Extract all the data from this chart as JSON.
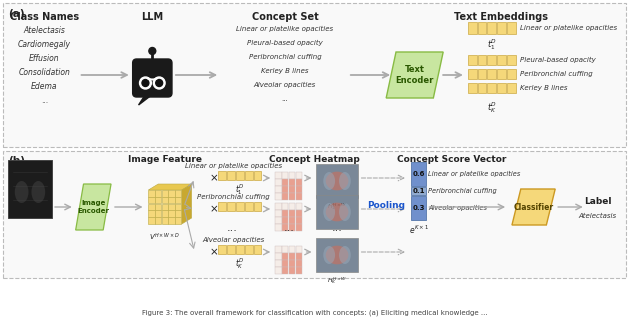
{
  "bg_color": "#ffffff",
  "green_color": "#c8e6a0",
  "yellow_color": "#f5d87a",
  "yellow_dark": "#e0c060",
  "yellow_darker": "#b89830",
  "blue_color": "#8aaacc",
  "blue_mid": "#6688bb",
  "gray_arrow": "#aaaaaa",
  "text_color": "#222222",
  "text_dark": "#111111",
  "panel_a": {
    "class_names_title": "Class Names",
    "llm_title": "LLM",
    "concept_set_title": "Concept Set",
    "text_encoder_label": "Text\nEncoder",
    "text_embeddings_title": "Text Embeddings",
    "class_names": [
      "Atelectasis",
      "Cardiomegaly",
      "Effusion",
      "Consolidation",
      "Edema",
      "..."
    ],
    "concept_set": [
      "Linear or platelike opacities",
      "Pleural-based opacity",
      "Peribronchial cuffing",
      "Kerley B lines",
      "Alveolar opacities",
      "..."
    ],
    "embedding_rows": [
      {
        "label": "Linear or platelike opacities",
        "cells": 5
      },
      {
        "label": "Pleural-based opacity",
        "cells": 5
      },
      {
        "label": "Peribronchial cuffing",
        "cells": 5
      },
      {
        "label": "Kerley B lines",
        "cells": 5
      }
    ],
    "t1_label": "$t_1^D$",
    "tk_label": "$t_K^D$"
  },
  "panel_b": {
    "image_encoder_label": "Image\nEncoder",
    "image_feature_title": "Image Feature",
    "concept_heatmap_title": "Concept Heatmap",
    "concept_score_title": "Concept Score Vector",
    "pooling_label": "Pooling",
    "classifier_label": "Classifier",
    "label_text": "Label",
    "class_label": "Atelectasis",
    "v_label": "$V^{H\\times W\\times D}$",
    "e_label": "$e^{K\\times 1}$",
    "concepts": [
      {
        "name": "Linear or platelike opacities",
        "t_label": "$t_1^D$",
        "H_label": "$H_1^{H\\times W}$"
      },
      {
        "name": "Peribronchial cuffing",
        "t_label": "",
        "H_label": ""
      },
      {
        "name": "Alveolar opacities",
        "t_label": "$t_K^D$",
        "H_label": "$H_K^{H\\times W}$"
      }
    ],
    "scores": [
      {
        "value": "0.6",
        "label": "Linear or platelike opacities"
      },
      {
        "value": "0.1",
        "label": "Peribronchial cuffing"
      },
      {
        "value": "0.3",
        "label": "Alveolar opacities"
      }
    ]
  },
  "caption": "Figure 3: The overall framework for classification with concepts: (a) Eliciting medical knowledge ..."
}
